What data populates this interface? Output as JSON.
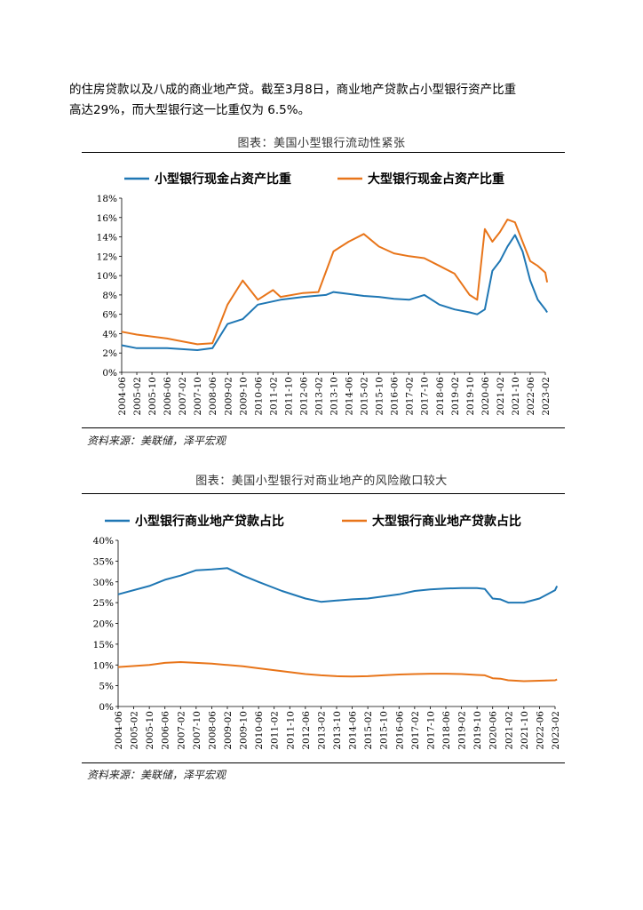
{
  "paragraph": {
    "line1": "的住房贷款以及八成的商业地产贷。截至3月8日，商业地产贷款占小型银行资产比重",
    "line2": "高达29%，而大型银行这一比重仅为 6.5%。"
  },
  "figures": [
    {
      "title": "图表：美国小型银行流动性紧张",
      "source": "资料来源：美联储，泽平宏观",
      "legend": [
        "小型银行现金占资产比重",
        "大型银行现金占资产比重"
      ]
    },
    {
      "title": "图表：美国小型银行对商业地产的风险敞口较大",
      "source": "资料来源：美联储，泽平宏观",
      "legend": [
        "小型银行商业地产贷款占比",
        "大型银行商业地产贷款占比"
      ]
    }
  ],
  "colors": {
    "small_bank": "#1f77b4",
    "large_bank": "#e8751a"
  },
  "chart_data": [
    {
      "type": "line",
      "ylim": [
        0,
        18
      ],
      "y_unit": "%",
      "ytick_labels": [
        "0%",
        "2%",
        "4%",
        "6%",
        "8%",
        "10%",
        "12%",
        "14%",
        "16%",
        "18%"
      ],
      "x_ticks": [
        "2004-06",
        "2005-02",
        "2005-10",
        "2006-06",
        "2007-02",
        "2007-10",
        "2008-06",
        "2009-02",
        "2009-10",
        "2010-06",
        "2011-02",
        "2011-10",
        "2012-06",
        "2013-02",
        "2013-10",
        "2014-06",
        "2015-02",
        "2015-10",
        "2016-06",
        "2017-02",
        "2017-10",
        "2018-06",
        "2019-02",
        "2019-10",
        "2020-06",
        "2021-02",
        "2021-10",
        "2022-06",
        "2023-02"
      ],
      "series": [
        {
          "name": "小型银行现金占资产比重",
          "color": "#1f77b4",
          "x": [
            "2004-06",
            "2005-02",
            "2006-06",
            "2007-10",
            "2008-06",
            "2009-02",
            "2009-10",
            "2010-06",
            "2011-06",
            "2012-06",
            "2013-06",
            "2013-10",
            "2014-06",
            "2015-02",
            "2015-10",
            "2016-06",
            "2017-02",
            "2017-10",
            "2018-06",
            "2019-02",
            "2019-10",
            "2020-02",
            "2020-06",
            "2020-10",
            "2021-02",
            "2021-06",
            "2021-10",
            "2022-02",
            "2022-06",
            "2022-10",
            "2023-02",
            "2023-03"
          ],
          "values": [
            2.8,
            2.5,
            2.5,
            2.3,
            2.5,
            5.0,
            5.5,
            7.0,
            7.5,
            7.8,
            8.0,
            8.3,
            8.1,
            7.9,
            7.8,
            7.6,
            7.5,
            8.0,
            7.0,
            6.5,
            6.2,
            6.0,
            6.5,
            10.5,
            11.5,
            13.0,
            14.2,
            12.5,
            9.5,
            7.5,
            6.5,
            6.2
          ]
        },
        {
          "name": "大型银行现金占资产比重",
          "color": "#e8751a",
          "x": [
            "2004-06",
            "2005-02",
            "2006-06",
            "2007-10",
            "2008-06",
            "2009-02",
            "2009-10",
            "2010-06",
            "2011-02",
            "2011-06",
            "2012-06",
            "2013-02",
            "2013-10",
            "2014-06",
            "2015-02",
            "2015-10",
            "2016-06",
            "2017-02",
            "2017-10",
            "2018-06",
            "2019-02",
            "2019-10",
            "2020-02",
            "2020-06",
            "2020-10",
            "2021-02",
            "2021-06",
            "2021-10",
            "2022-02",
            "2022-06",
            "2022-10",
            "2023-02",
            "2023-03"
          ],
          "values": [
            4.2,
            3.9,
            3.5,
            2.9,
            3.0,
            7.0,
            9.5,
            7.5,
            8.5,
            7.8,
            8.2,
            8.3,
            12.5,
            13.5,
            14.3,
            13.0,
            12.3,
            12.0,
            11.8,
            11.0,
            10.2,
            8.0,
            7.5,
            14.8,
            13.5,
            14.5,
            15.8,
            15.5,
            13.5,
            11.5,
            11.0,
            10.3,
            9.3
          ]
        }
      ]
    },
    {
      "type": "line",
      "ylim": [
        0,
        40
      ],
      "y_unit": "%",
      "ytick_labels": [
        "0%",
        "5%",
        "10%",
        "15%",
        "20%",
        "25%",
        "30%",
        "35%",
        "40%"
      ],
      "x_ticks": [
        "2004-06",
        "2005-02",
        "2005-10",
        "2006-06",
        "2007-02",
        "2007-10",
        "2008-06",
        "2009-02",
        "2009-10",
        "2010-06",
        "2011-02",
        "2011-10",
        "2012-06",
        "2013-02",
        "2013-10",
        "2014-06",
        "2015-02",
        "2015-10",
        "2016-06",
        "2017-02",
        "2017-10",
        "2018-06",
        "2019-02",
        "2019-10",
        "2020-06",
        "2021-02",
        "2021-10",
        "2022-06",
        "2023-02"
      ],
      "series": [
        {
          "name": "小型银行商业地产贷款占比",
          "color": "#1f77b4",
          "x": [
            "2004-06",
            "2005-10",
            "2006-06",
            "2007-02",
            "2007-10",
            "2008-06",
            "2009-02",
            "2009-10",
            "2010-06",
            "2011-06",
            "2012-06",
            "2013-02",
            "2013-10",
            "2014-06",
            "2015-02",
            "2015-10",
            "2016-06",
            "2017-02",
            "2017-10",
            "2018-06",
            "2019-02",
            "2019-10",
            "2020-02",
            "2020-06",
            "2020-10",
            "2021-02",
            "2021-10",
            "2022-06",
            "2023-02",
            "2023-03"
          ],
          "values": [
            27.0,
            29.0,
            30.5,
            31.5,
            32.8,
            33.0,
            33.3,
            31.5,
            30.0,
            27.8,
            26.0,
            25.2,
            25.5,
            25.8,
            26.0,
            26.5,
            27.0,
            27.8,
            28.2,
            28.4,
            28.5,
            28.5,
            28.3,
            26.0,
            25.8,
            25.0,
            25.0,
            26.0,
            28.0,
            29.0
          ]
        },
        {
          "name": "大型银行商业地产贷款占比",
          "color": "#e8751a",
          "x": [
            "2004-06",
            "2005-10",
            "2006-06",
            "2007-02",
            "2007-10",
            "2008-06",
            "2009-02",
            "2009-10",
            "2010-06",
            "2011-06",
            "2012-06",
            "2013-02",
            "2013-10",
            "2014-06",
            "2015-02",
            "2015-10",
            "2016-06",
            "2017-02",
            "2017-10",
            "2018-06",
            "2019-02",
            "2019-10",
            "2020-02",
            "2020-06",
            "2020-10",
            "2021-02",
            "2021-10",
            "2022-06",
            "2023-02",
            "2023-03"
          ],
          "values": [
            9.5,
            10.0,
            10.5,
            10.7,
            10.5,
            10.3,
            10.0,
            9.7,
            9.2,
            8.5,
            7.8,
            7.5,
            7.3,
            7.2,
            7.3,
            7.5,
            7.7,
            7.8,
            7.9,
            7.9,
            7.8,
            7.6,
            7.5,
            6.8,
            6.7,
            6.3,
            6.1,
            6.2,
            6.3,
            6.5
          ]
        }
      ]
    }
  ]
}
